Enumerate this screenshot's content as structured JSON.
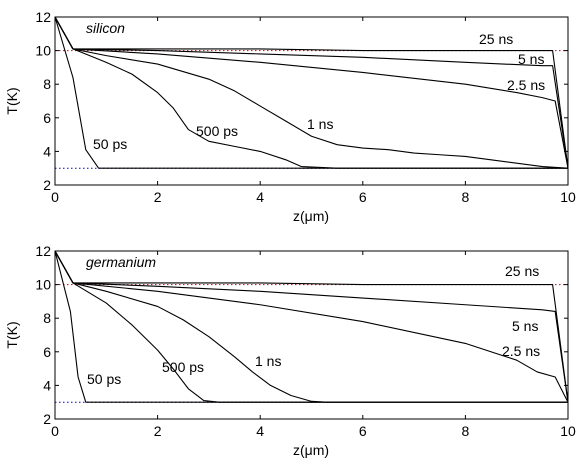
{
  "chart_data": [
    {
      "type": "line",
      "title": "",
      "annotation": "silicon",
      "xlabel": "z(μm)",
      "ylabel": "T(K)",
      "xlim": [
        0,
        10
      ],
      "ylim": [
        2,
        12
      ],
      "xticks": [
        0,
        2,
        4,
        6,
        8,
        10
      ],
      "yticks": [
        2,
        4,
        6,
        8,
        10,
        12
      ],
      "reference_lines": [
        {
          "y": 10,
          "color": "#cc0000",
          "style": "dotted"
        },
        {
          "y": 3,
          "color": "#0000cc",
          "style": "dotted"
        }
      ],
      "series": [
        {
          "name": "50 ps",
          "x": [
            0,
            0.35,
            0.6,
            0.85,
            1.0,
            2,
            4,
            6,
            8,
            9.5,
            10
          ],
          "y": [
            12,
            8.4,
            4.1,
            3.0,
            3.0,
            3.0,
            3.0,
            3.0,
            3.0,
            3.0,
            3.0
          ]
        },
        {
          "name": "500 ps",
          "x": [
            0,
            0.35,
            1.0,
            1.5,
            2.0,
            2.3,
            2.6,
            3.0,
            3.5,
            4.0,
            4.5,
            4.8,
            5.5,
            7,
            9.5,
            10
          ],
          "y": [
            12,
            10.1,
            9.3,
            8.6,
            7.5,
            6.6,
            5.3,
            4.6,
            4.3,
            4.0,
            3.5,
            3.1,
            3.0,
            3.0,
            3.0,
            3.0
          ]
        },
        {
          "name": "1 ns",
          "x": [
            0,
            0.35,
            1,
            2,
            3,
            3.5,
            4,
            4.5,
            5,
            5.5,
            6,
            6.5,
            7,
            7.5,
            8,
            8.5,
            9,
            9.5,
            10
          ],
          "y": [
            12,
            10.1,
            9.7,
            9.2,
            8.3,
            7.6,
            6.7,
            5.8,
            4.9,
            4.4,
            4.2,
            4.1,
            3.9,
            3.8,
            3.7,
            3.5,
            3.3,
            3.1,
            3.0
          ]
        },
        {
          "name": "2.5 ns",
          "x": [
            0,
            0.35,
            2,
            4,
            6,
            8,
            9,
            9.5,
            9.75,
            10
          ],
          "y": [
            12,
            10.1,
            9.8,
            9.3,
            8.7,
            8.0,
            7.5,
            7.2,
            7.0,
            3.0
          ]
        },
        {
          "name": "5 ns",
          "x": [
            0,
            0.35,
            2,
            4,
            6,
            8,
            9.5,
            9.7,
            10
          ],
          "y": [
            12,
            10.1,
            10.0,
            9.8,
            9.6,
            9.3,
            9.1,
            9.1,
            3.0
          ]
        },
        {
          "name": "25 ns",
          "x": [
            0,
            0.35,
            2,
            4,
            6,
            8,
            9.5,
            9.7,
            10
          ],
          "y": [
            12,
            10.1,
            10.1,
            10.1,
            10.0,
            10.0,
            10.0,
            10.0,
            3.0
          ]
        }
      ]
    },
    {
      "type": "line",
      "title": "",
      "annotation": "germanium",
      "xlabel": "z(μm)",
      "ylabel": "T(K)",
      "xlim": [
        0,
        10
      ],
      "ylim": [
        2,
        12
      ],
      "xticks": [
        0,
        2,
        4,
        6,
        8,
        10
      ],
      "yticks": [
        2,
        4,
        6,
        8,
        10,
        12
      ],
      "reference_lines": [
        {
          "y": 10,
          "color": "#cc0000",
          "style": "dotted"
        },
        {
          "y": 3,
          "color": "#0000cc",
          "style": "dotted"
        }
      ],
      "series": [
        {
          "name": "50 ps",
          "x": [
            0,
            0.3,
            0.45,
            0.6,
            1.0,
            2,
            4,
            6,
            8,
            9.5,
            10
          ],
          "y": [
            12,
            8.4,
            4.5,
            3.0,
            3.0,
            3.0,
            3.0,
            3.0,
            3.0,
            3.0,
            3.0
          ]
        },
        {
          "name": "500 ps",
          "x": [
            0,
            0.35,
            1,
            1.5,
            2,
            2.3,
            2.6,
            2.9,
            3.2,
            4,
            6,
            8,
            10
          ],
          "y": [
            12,
            10.1,
            8.9,
            7.6,
            6.1,
            5.0,
            3.8,
            3.1,
            3.0,
            3.0,
            3.0,
            3.0,
            3.0
          ]
        },
        {
          "name": "1 ns",
          "x": [
            0,
            0.35,
            1,
            2,
            2.5,
            3,
            3.5,
            3.85,
            4.2,
            4.6,
            5.0,
            5.3,
            6,
            8,
            10
          ],
          "y": [
            12,
            10.1,
            9.6,
            8.7,
            7.9,
            6.9,
            5.7,
            4.8,
            4.0,
            3.4,
            3.05,
            3.0,
            3.0,
            3.0,
            3.0
          ]
        },
        {
          "name": "2.5 ns",
          "x": [
            0,
            0.35,
            2,
            4,
            6,
            8,
            9,
            9.4,
            9.75,
            10
          ],
          "y": [
            12,
            10.1,
            9.6,
            8.8,
            7.8,
            6.5,
            5.5,
            4.8,
            4.5,
            3.0
          ]
        },
        {
          "name": "5 ns",
          "x": [
            0,
            0.35,
            2,
            4,
            6,
            8,
            9.5,
            9.75,
            10
          ],
          "y": [
            12,
            10.1,
            9.9,
            9.6,
            9.2,
            8.8,
            8.5,
            8.4,
            3.0
          ]
        },
        {
          "name": "25 ns",
          "x": [
            0,
            0.35,
            2,
            4,
            6,
            8,
            9.5,
            9.7,
            10
          ],
          "y": [
            12,
            10.1,
            10.1,
            10.1,
            10.0,
            10.0,
            10.0,
            10.0,
            3.0
          ]
        }
      ]
    }
  ]
}
